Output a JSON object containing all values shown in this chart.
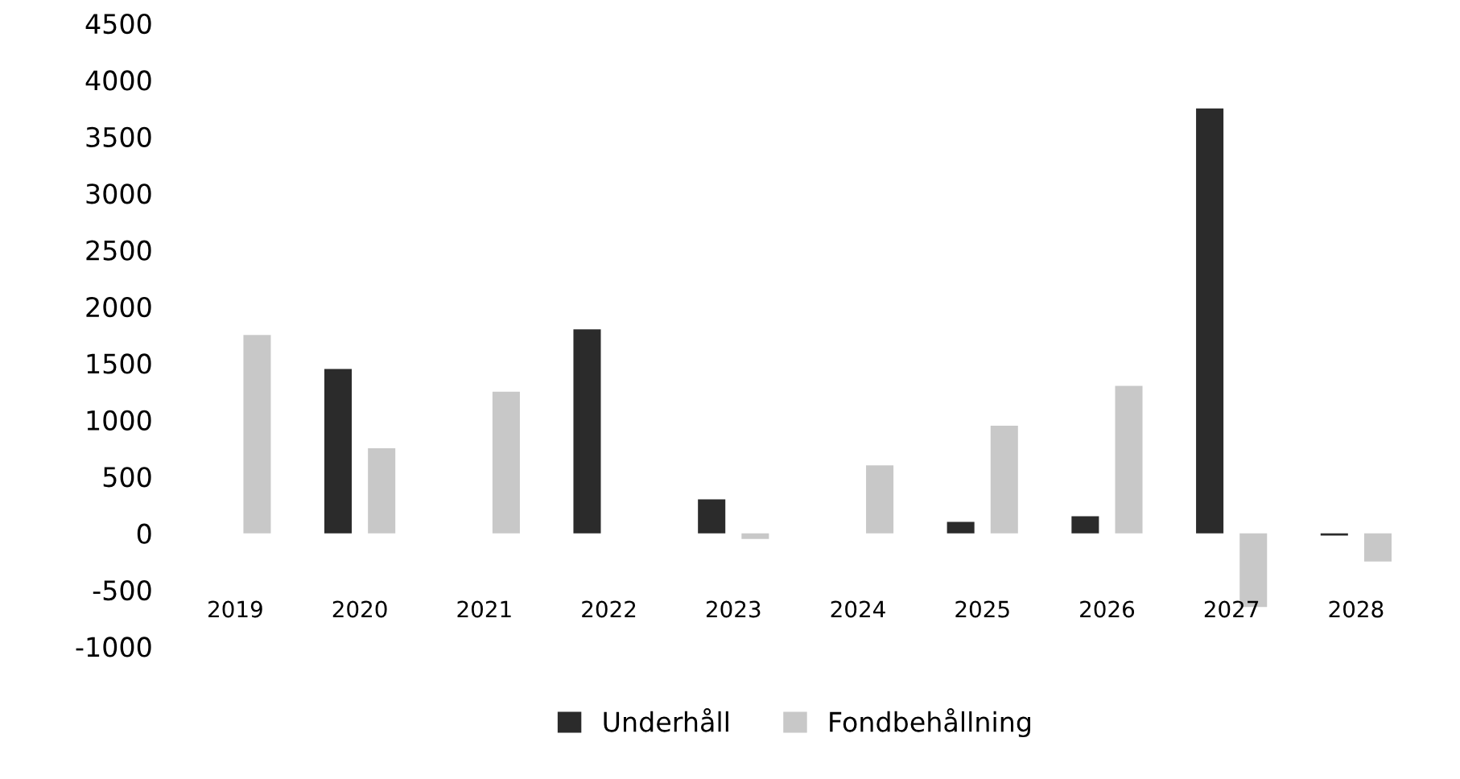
{
  "chart_data": {
    "type": "bar",
    "categories": [
      "2019",
      "2020",
      "2021",
      "2022",
      "2023",
      "2024",
      "2025",
      "2026",
      "2027",
      "2028"
    ],
    "series": [
      {
        "name": "Underhåll",
        "color": "#2b2b2b",
        "values": [
          null,
          1450,
          null,
          1800,
          300,
          null,
          100,
          150,
          3750,
          -20
        ]
      },
      {
        "name": "Fondbehållning",
        "color": "#c8c8c8",
        "values": [
          1750,
          750,
          1250,
          null,
          -50,
          600,
          950,
          1300,
          -650,
          -250
        ]
      }
    ],
    "ylim": [
      -1000,
      4500
    ],
    "yticks": [
      -1000,
      -500,
      0,
      500,
      1000,
      1500,
      2000,
      2500,
      3000,
      3500,
      4000,
      4500
    ],
    "grid": false,
    "legend": "bottom"
  }
}
